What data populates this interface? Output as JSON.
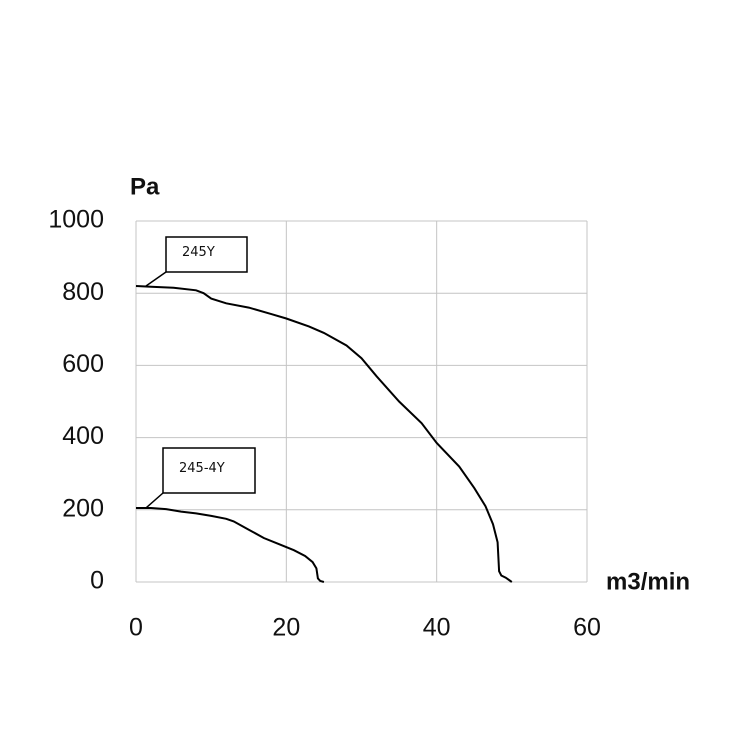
{
  "chart_data": {
    "type": "line",
    "y_label": "Pa",
    "x_label": "m3/min",
    "xlim": [
      0,
      60
    ],
    "xticks": [
      0,
      20,
      40,
      60
    ],
    "ylim": [
      0,
      1000
    ],
    "yticks": [
      0,
      200,
      400,
      600,
      800,
      1000
    ],
    "grid": true,
    "series": [
      {
        "name": "245Y",
        "color": "#000000",
        "x": [
          0,
          2,
          5,
          8,
          9,
          10,
          12,
          15,
          18,
          20,
          23,
          25,
          28,
          30,
          32,
          35,
          38,
          40,
          43,
          45,
          46.5,
          47.5,
          48.1,
          48.3,
          48.6,
          49.2,
          50
        ],
        "values": [
          820,
          818,
          815,
          808,
          800,
          785,
          772,
          760,
          742,
          730,
          708,
          690,
          655,
          620,
          570,
          500,
          440,
          385,
          320,
          260,
          210,
          160,
          110,
          30,
          18,
          12,
          0
        ]
      },
      {
        "name": "245-4Y",
        "color": "#000000",
        "x": [
          0,
          2,
          4,
          6,
          8,
          10,
          12,
          13,
          15,
          17,
          19,
          21,
          22.5,
          23.5,
          24,
          24.2,
          24.5,
          25
        ],
        "values": [
          205,
          205,
          202,
          195,
          190,
          183,
          175,
          168,
          145,
          122,
          105,
          88,
          72,
          55,
          38,
          10,
          3,
          0
        ]
      }
    ],
    "annotations": [
      {
        "text": "245Y"
      },
      {
        "text": "245-4Y"
      }
    ]
  }
}
